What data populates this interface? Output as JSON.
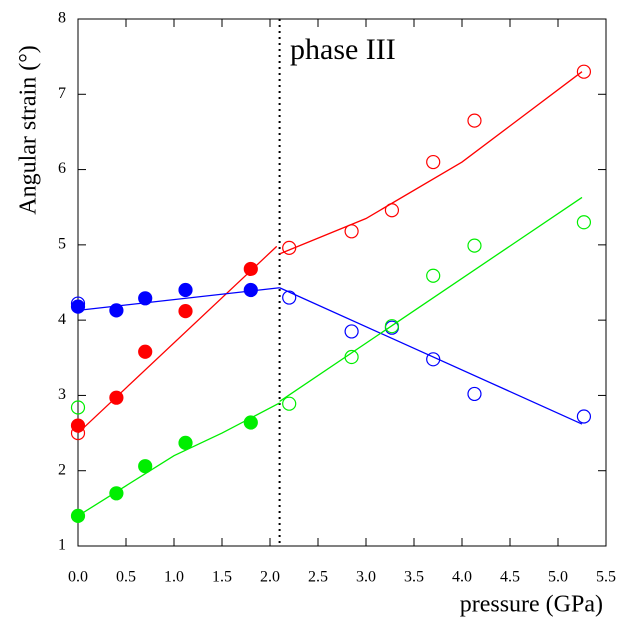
{
  "chart_data": {
    "type": "scatter",
    "annotation": "phase III",
    "x_label": "pressure (GPa)",
    "y_label": "Angular strain (°)",
    "xlim": [
      0,
      5.5
    ],
    "ylim": [
      1,
      8
    ],
    "xticks": [
      {
        "value": 0,
        "label": "0.0"
      },
      0.5,
      {
        "value": 1,
        "label": "1.0"
      },
      1.5,
      {
        "value": 2,
        "label": "2.0"
      },
      2.5,
      {
        "value": 3,
        "label": "3.0"
      },
      3.5,
      {
        "value": 4,
        "label": "4.0"
      },
      4.5,
      {
        "value": 5,
        "label": "5.0"
      },
      5.5
    ],
    "yticks": [
      1,
      2,
      3,
      4,
      5,
      6,
      7,
      8
    ],
    "phase_boundary": 2.1,
    "series": [
      {
        "color": "#ff0000",
        "style": "filled",
        "x": [
          0.0,
          0.4,
          0.7,
          1.12,
          1.8
        ],
        "values": [
          2.6,
          2.97,
          3.58,
          4.12,
          4.68
        ]
      },
      {
        "color": "#ff0000",
        "style": "open",
        "x": [
          0.0,
          2.2,
          2.85,
          3.27,
          3.7,
          4.13,
          5.27
        ],
        "values": [
          2.5,
          4.96,
          5.18,
          5.46,
          6.1,
          6.65,
          7.3
        ]
      },
      {
        "color": "#0000ff",
        "style": "filled",
        "x": [
          0.0,
          0.4,
          0.7,
          1.12,
          1.8
        ],
        "values": [
          4.18,
          4.13,
          4.29,
          4.4,
          4.4
        ]
      },
      {
        "color": "#0000ff",
        "style": "open",
        "x": [
          0.0,
          2.2,
          2.85,
          3.27,
          3.7,
          4.13,
          5.27
        ],
        "values": [
          4.22,
          4.3,
          3.85,
          3.9,
          3.48,
          3.02,
          2.72
        ]
      },
      {
        "color": "#00ee00",
        "style": "filled",
        "x": [
          0.0,
          0.4,
          0.7,
          1.12,
          1.8
        ],
        "values": [
          1.4,
          1.7,
          2.06,
          2.37,
          2.64
        ]
      },
      {
        "color": "#00ee00",
        "style": "open",
        "x": [
          0.0,
          2.2,
          2.85,
          3.27,
          3.7,
          4.13,
          5.27
        ],
        "values": [
          2.84,
          2.89,
          3.51,
          3.92,
          4.59,
          4.99,
          5.3
        ]
      },
      {
        "color": "#ff0000",
        "style": "line",
        "x": [
          0.0,
          2.07
        ],
        "values": [
          2.5,
          4.98
        ]
      },
      {
        "color": "#ff0000",
        "style": "line",
        "x": [
          2.1,
          3.0,
          4.0,
          5.25
        ],
        "values": [
          4.88,
          5.35,
          6.1,
          7.3
        ]
      },
      {
        "color": "#0000ff",
        "style": "line",
        "x": [
          0.0,
          2.1
        ],
        "values": [
          4.13,
          4.43
        ]
      },
      {
        "color": "#0000ff",
        "style": "line",
        "x": [
          2.1,
          5.25
        ],
        "values": [
          4.43,
          2.62
        ]
      },
      {
        "color": "#00ee00",
        "style": "line",
        "x": [
          0.0,
          0.5,
          1.0,
          1.5,
          2.1
        ],
        "values": [
          1.4,
          1.8,
          2.2,
          2.5,
          2.9
        ]
      },
      {
        "color": "#00ee00",
        "style": "line",
        "x": [
          2.1,
          5.25
        ],
        "values": [
          2.92,
          5.63
        ]
      }
    ]
  }
}
